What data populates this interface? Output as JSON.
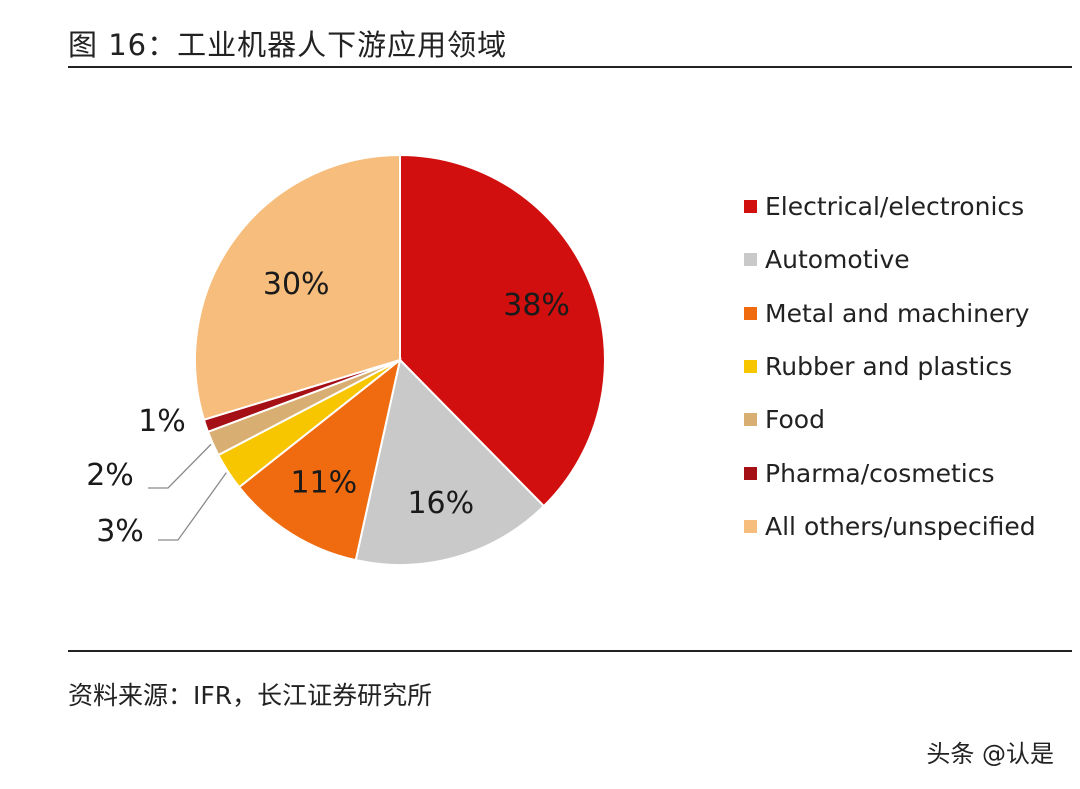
{
  "title": "图 16：工业机器人下游应用领域",
  "source": "资料来源：IFR，长江证券研究所",
  "watermark": "头条 @认是",
  "chart_data": {
    "type": "pie",
    "title": "",
    "slices": [
      {
        "label": "Electrical/electronics",
        "value": 38,
        "display": "38%",
        "color": "#D20F0F"
      },
      {
        "label": "Automotive",
        "value": 16,
        "display": "16%",
        "color": "#C9C9C9"
      },
      {
        "label": "Metal and machinery",
        "value": 11,
        "display": "11%",
        "color": "#F06A0F"
      },
      {
        "label": "Rubber and plastics",
        "value": 3,
        "display": "3%",
        "color": "#F7C600"
      },
      {
        "label": "Food",
        "value": 2,
        "display": "2%",
        "color": "#D8AE72"
      },
      {
        "label": "Pharma/cosmetics",
        "value": 1,
        "display": "1%",
        "color": "#A50F16"
      },
      {
        "label": "All others/unspecified",
        "value": 30,
        "display": "30%",
        "color": "#F6BD7C"
      }
    ],
    "legend_position": "right"
  }
}
